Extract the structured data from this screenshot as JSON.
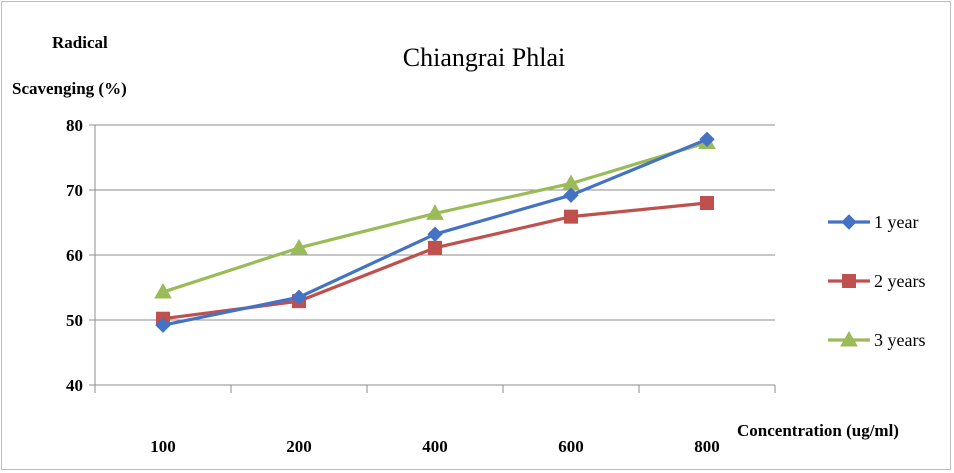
{
  "chart_data": {
    "type": "line",
    "title": "Chiangrai Phlai",
    "ylabel_line1": "Radical",
    "ylabel_line2": "Scavenging (%)",
    "xlabel": "Concentration (ug/ml)",
    "categories": [
      "100",
      "200",
      "400",
      "600",
      "800"
    ],
    "ylim": [
      40,
      80
    ],
    "yticks": [
      40,
      50,
      60,
      70,
      80
    ],
    "grid": true,
    "legend_position": "right",
    "series": [
      {
        "name": "1 year",
        "values": [
          49.2,
          53.5,
          63.2,
          69.2,
          77.8
        ],
        "color": "#4472c4",
        "marker": "diamond"
      },
      {
        "name": "2 years",
        "values": [
          50.2,
          52.9,
          61.1,
          65.9,
          68.0
        ],
        "color": "#c0504d",
        "marker": "square"
      },
      {
        "name": "3 years",
        "values": [
          54.3,
          61.1,
          66.4,
          71.0,
          77.3
        ],
        "color": "#9bbb59",
        "marker": "triangle"
      }
    ]
  }
}
